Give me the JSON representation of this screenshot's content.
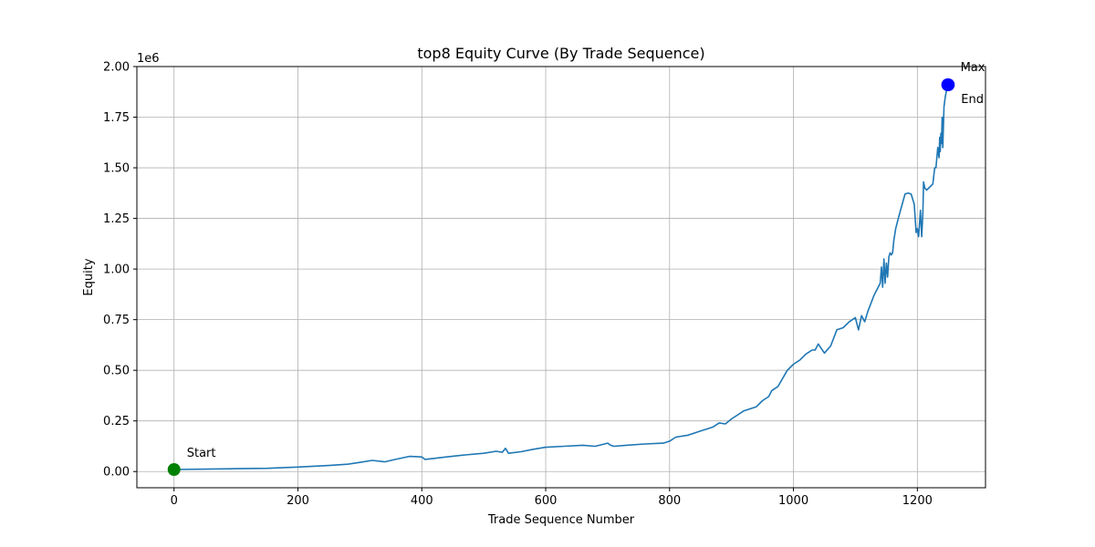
{
  "chart_data": {
    "type": "line",
    "title": "top8 Equity Curve (By Trade Sequence)",
    "xlabel": "Trade Sequence Number",
    "ylabel": "Equity",
    "y_offset_text": "1e6",
    "xlim": [
      -60,
      1310
    ],
    "ylim": [
      -0.08,
      2.0
    ],
    "x_ticks": [
      0,
      200,
      400,
      600,
      800,
      1000,
      1200
    ],
    "y_ticks": [
      0.0,
      0.25,
      0.5,
      0.75,
      1.0,
      1.25,
      1.5,
      1.75,
      2.0
    ],
    "y_tick_labels": [
      "0.00",
      "0.25",
      "0.50",
      "0.75",
      "1.00",
      "1.25",
      "1.50",
      "1.75",
      "2.00"
    ],
    "grid": true,
    "line_color": "#1f77b4",
    "series": [
      {
        "x": [
          0,
          50,
          100,
          150,
          200,
          250,
          280,
          300,
          320,
          340,
          360,
          380,
          400,
          405,
          420,
          440,
          470,
          500,
          520,
          530,
          535,
          540,
          560,
          580,
          600,
          630,
          660,
          680,
          700,
          705,
          710,
          730,
          760,
          790,
          800,
          810,
          830,
          850,
          860,
          870,
          880,
          890,
          900,
          920,
          940,
          950,
          960,
          965,
          975,
          990,
          1000,
          1010,
          1020,
          1030,
          1035,
          1040,
          1050,
          1060,
          1070,
          1080,
          1090,
          1100,
          1105,
          1110,
          1115,
          1120,
          1130,
          1140,
          1142,
          1144,
          1146,
          1148,
          1150,
          1152,
          1154,
          1156,
          1158,
          1160,
          1162,
          1165,
          1170,
          1180,
          1185,
          1190,
          1195,
          1198,
          1200,
          1202,
          1205,
          1207,
          1209,
          1210,
          1212,
          1215,
          1225,
          1228,
          1230,
          1233,
          1235,
          1236,
          1237,
          1238,
          1239,
          1240,
          1241,
          1243,
          1245,
          1247,
          1248,
          1250
        ],
        "y": [
          0.01,
          0.012,
          0.014,
          0.016,
          0.022,
          0.03,
          0.036,
          0.045,
          0.055,
          0.048,
          0.062,
          0.075,
          0.072,
          0.06,
          0.065,
          0.072,
          0.082,
          0.09,
          0.1,
          0.095,
          0.115,
          0.09,
          0.098,
          0.11,
          0.12,
          0.125,
          0.13,
          0.125,
          0.14,
          0.13,
          0.125,
          0.13,
          0.136,
          0.14,
          0.15,
          0.17,
          0.18,
          0.2,
          0.21,
          0.22,
          0.24,
          0.235,
          0.26,
          0.3,
          0.32,
          0.35,
          0.37,
          0.4,
          0.42,
          0.5,
          0.53,
          0.55,
          0.58,
          0.6,
          0.6,
          0.63,
          0.585,
          0.62,
          0.7,
          0.71,
          0.74,
          0.76,
          0.7,
          0.77,
          0.74,
          0.79,
          0.87,
          0.93,
          1.01,
          0.91,
          1.05,
          0.93,
          1.03,
          0.96,
          1.06,
          1.08,
          1.07,
          1.08,
          1.14,
          1.2,
          1.26,
          1.37,
          1.375,
          1.37,
          1.32,
          1.18,
          1.2,
          1.16,
          1.29,
          1.16,
          1.28,
          1.43,
          1.4,
          1.39,
          1.42,
          1.5,
          1.5,
          1.6,
          1.55,
          1.65,
          1.58,
          1.67,
          1.62,
          1.75,
          1.6,
          1.8,
          1.85,
          1.88,
          1.89,
          1.91
        ]
      }
    ],
    "markers": [
      {
        "label": "Start",
        "x": 0,
        "y": 0.01,
        "color": "#008000"
      },
      {
        "label": "Max",
        "x": 1249,
        "y": 1.91,
        "color": "#0000ff"
      },
      {
        "label": "End",
        "x": 1250,
        "y": 1.91,
        "color": "#0000ff"
      }
    ]
  }
}
